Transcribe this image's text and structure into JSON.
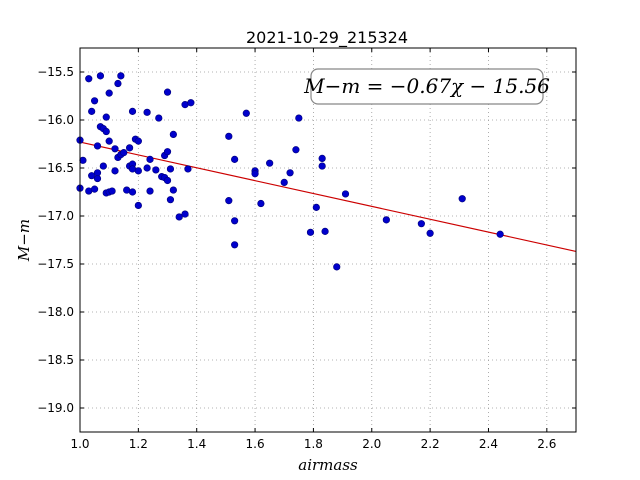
{
  "chart_data": {
    "type": "scatter",
    "title": "2021-10-29_215324",
    "xlabel": "airmass",
    "ylabel": "M−m",
    "xlim": [
      1.0,
      2.7
    ],
    "ylim": [
      -19.25,
      -15.25
    ],
    "y_inverted": true,
    "grid": true,
    "x_ticks": [
      1.0,
      1.2,
      1.4,
      1.6,
      1.8,
      2.0,
      2.2,
      2.4,
      2.6
    ],
    "x_tick_labels": [
      "1.0",
      "1.2",
      "1.4",
      "1.6",
      "1.8",
      "2.0",
      "2.2",
      "2.4",
      "2.6"
    ],
    "y_ticks": [
      -15.5,
      -16.0,
      -16.5,
      -17.0,
      -17.5,
      -18.0,
      -18.5,
      -19.0
    ],
    "y_tick_labels": [
      "−15.5",
      "−16.0",
      "−16.5",
      "−17.0",
      "−17.5",
      "−18.0",
      "−18.5",
      "−19.0"
    ],
    "points_color": "#0000cc",
    "fit_color": "#cc0000",
    "fit_line": {
      "slope": -0.67,
      "intercept": -15.56,
      "x_range": [
        1.0,
        2.7
      ]
    },
    "annotation": "M−m = −0.67χ − 15.56",
    "annotation_placement": "top-right",
    "points": [
      [
        1.0,
        -16.21
      ],
      [
        1.0,
        -16.71
      ],
      [
        1.01,
        -16.42
      ],
      [
        1.03,
        -15.57
      ],
      [
        1.03,
        -16.74
      ],
      [
        1.04,
        -15.91
      ],
      [
        1.04,
        -16.58
      ],
      [
        1.05,
        -15.8
      ],
      [
        1.05,
        -16.72
      ],
      [
        1.06,
        -16.55
      ],
      [
        1.06,
        -16.61
      ],
      [
        1.06,
        -16.27
      ],
      [
        1.07,
        -15.54
      ],
      [
        1.07,
        -16.07
      ],
      [
        1.08,
        -16.09
      ],
      [
        1.08,
        -16.48
      ],
      [
        1.09,
        -16.76
      ],
      [
        1.09,
        -15.97
      ],
      [
        1.09,
        -16.12
      ],
      [
        1.1,
        -15.72
      ],
      [
        1.1,
        -16.22
      ],
      [
        1.1,
        -16.75
      ],
      [
        1.11,
        -16.74
      ],
      [
        1.12,
        -16.53
      ],
      [
        1.12,
        -16.3
      ],
      [
        1.13,
        -16.39
      ],
      [
        1.13,
        -15.62
      ],
      [
        1.14,
        -16.36
      ],
      [
        1.14,
        -15.54
      ],
      [
        1.15,
        -16.34
      ],
      [
        1.16,
        -16.73
      ],
      [
        1.17,
        -16.29
      ],
      [
        1.17,
        -16.48
      ],
      [
        1.18,
        -16.46
      ],
      [
        1.18,
        -16.51
      ],
      [
        1.18,
        -15.91
      ],
      [
        1.18,
        -16.75
      ],
      [
        1.19,
        -16.2
      ],
      [
        1.2,
        -16.53
      ],
      [
        1.2,
        -16.22
      ],
      [
        1.2,
        -16.89
      ],
      [
        1.23,
        -15.92
      ],
      [
        1.23,
        -16.5
      ],
      [
        1.24,
        -16.41
      ],
      [
        1.24,
        -16.74
      ],
      [
        1.26,
        -16.52
      ],
      [
        1.27,
        -15.98
      ],
      [
        1.28,
        -16.59
      ],
      [
        1.29,
        -16.6
      ],
      [
        1.29,
        -16.37
      ],
      [
        1.3,
        -15.71
      ],
      [
        1.3,
        -16.33
      ],
      [
        1.3,
        -16.63
      ],
      [
        1.31,
        -16.51
      ],
      [
        1.31,
        -16.83
      ],
      [
        1.32,
        -16.73
      ],
      [
        1.32,
        -16.15
      ],
      [
        1.34,
        -17.01
      ],
      [
        1.36,
        -15.84
      ],
      [
        1.36,
        -16.98
      ],
      [
        1.37,
        -16.51
      ],
      [
        1.38,
        -15.82
      ],
      [
        1.51,
        -16.17
      ],
      [
        1.51,
        -16.84
      ],
      [
        1.53,
        -17.05
      ],
      [
        1.53,
        -17.3
      ],
      [
        1.53,
        -16.41
      ],
      [
        1.57,
        -15.93
      ],
      [
        1.6,
        -16.53
      ],
      [
        1.6,
        -16.56
      ],
      [
        1.62,
        -16.87
      ],
      [
        1.65,
        -16.45
      ],
      [
        1.7,
        -16.65
      ],
      [
        1.72,
        -16.55
      ],
      [
        1.74,
        -16.31
      ],
      [
        1.75,
        -15.98
      ],
      [
        1.79,
        -17.17
      ],
      [
        1.81,
        -16.91
      ],
      [
        1.83,
        -16.4
      ],
      [
        1.83,
        -16.48
      ],
      [
        1.84,
        -17.16
      ],
      [
        1.88,
        -17.53
      ],
      [
        1.91,
        -16.77
      ],
      [
        2.05,
        -17.04
      ],
      [
        2.17,
        -17.08
      ],
      [
        2.2,
        -17.18
      ],
      [
        2.31,
        -16.82
      ],
      [
        2.44,
        -17.19
      ]
    ]
  }
}
